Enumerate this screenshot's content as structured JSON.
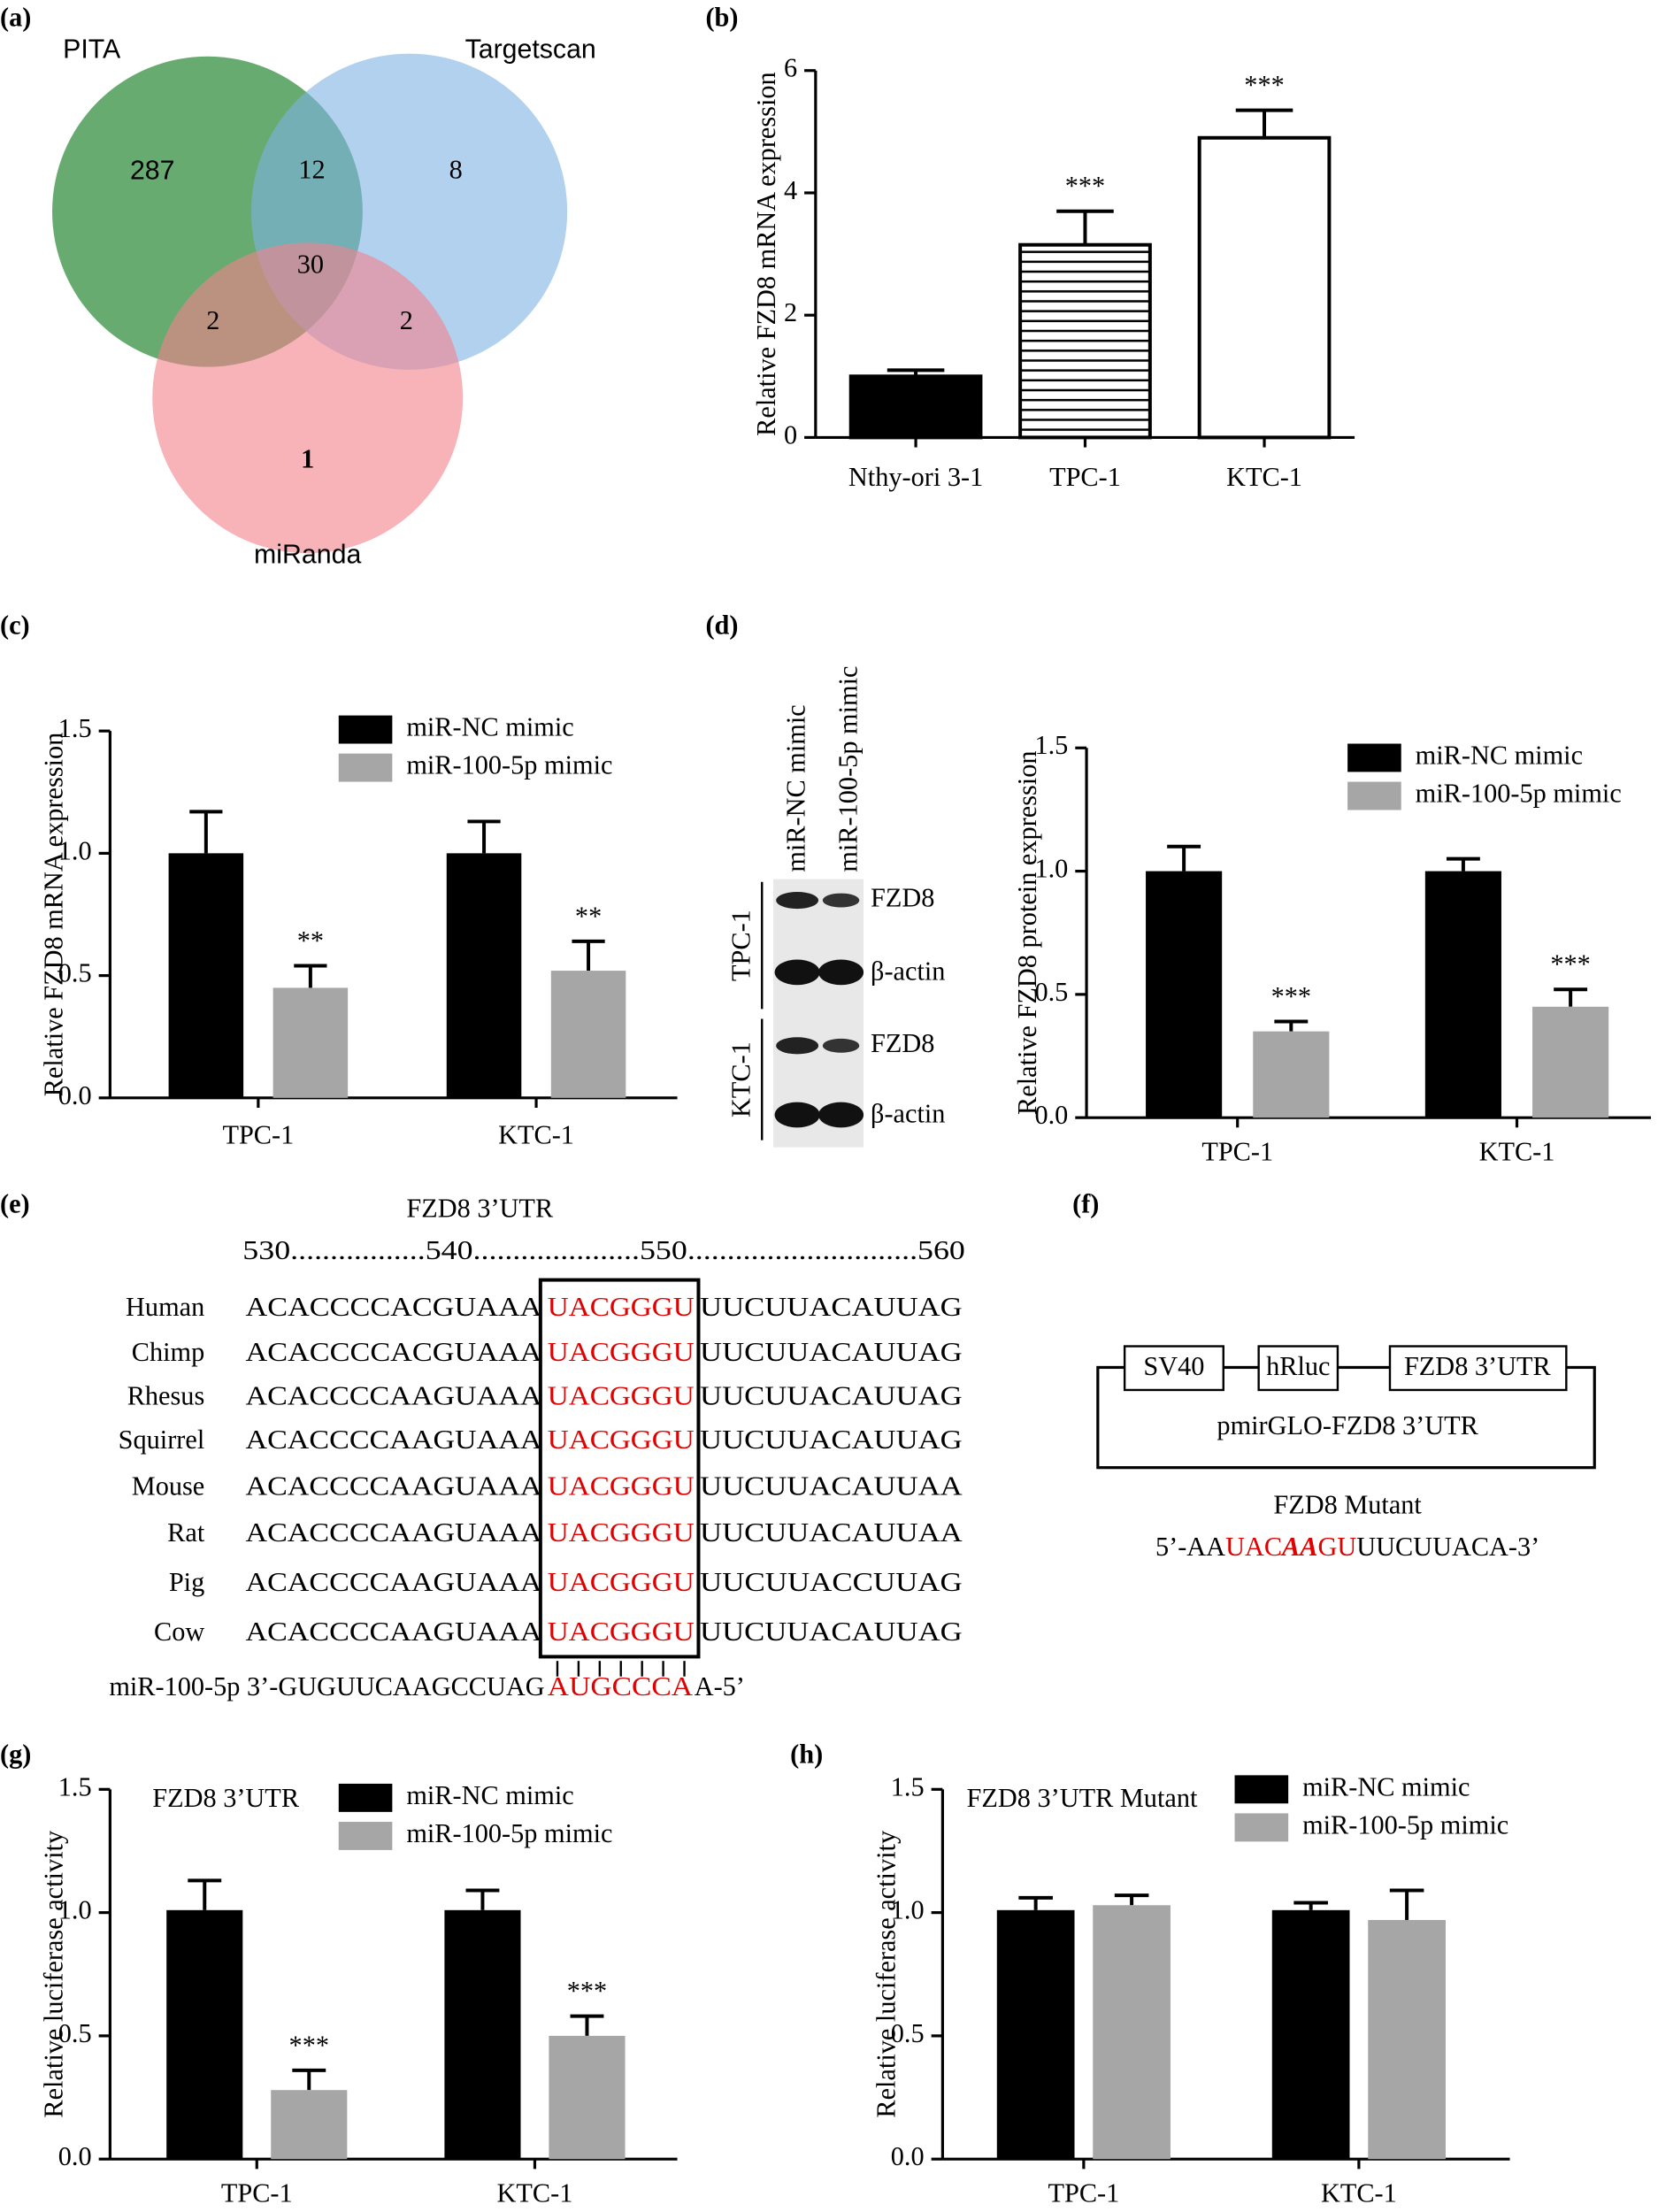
{
  "panel_labels": [
    "(a)",
    "(b)",
    "(c)",
    "(d)",
    "(e)",
    "(f)",
    "(g)",
    "(h)"
  ],
  "venn": {
    "sets": [
      {
        "name": "PITA",
        "color": "#2e8b3a"
      },
      {
        "name": "Targetscan",
        "color": "#7fb2e5"
      },
      {
        "name": "miRanda",
        "color": "#f3808b"
      }
    ],
    "counts": [
      287,
      12,
      8,
      30,
      2,
      2,
      1
    ]
  },
  "chart_data": [
    {
      "type": "bar",
      "ylabel": "Relative FZD8 mRNA expression",
      "categories": [
        "Nthy-ori 3-1",
        "TPC-1",
        "KTC-1"
      ],
      "values": [
        1.0,
        3.15,
        4.9
      ],
      "errors": [
        0.1,
        0.55,
        0.45
      ],
      "colors": [
        "#000000",
        "#ffffff",
        "#ffffff"
      ],
      "hatch": [
        false,
        true,
        false
      ],
      "annotations": [
        null,
        "***",
        "***"
      ],
      "ylim": [
        0,
        6
      ],
      "yticks": [
        0,
        2,
        4,
        6
      ]
    },
    {
      "type": "grouped_bar",
      "ylabel": "Relative FZD8 mRNA expression",
      "categories": [
        "TPC-1",
        "KTC-1"
      ],
      "series": [
        {
          "name": "miR-NC mimic",
          "color": "#000000",
          "values": [
            1.0,
            1.0
          ],
          "errors": [
            0.17,
            0.13
          ]
        },
        {
          "name": "miR-100-5p mimic",
          "color": "#a6a6a6",
          "values": [
            0.45,
            0.52
          ],
          "errors": [
            0.09,
            0.12
          ],
          "annotations": [
            "**",
            "**"
          ]
        }
      ],
      "ylim": [
        0,
        1.5
      ],
      "yticks": [
        {
          "value": 0,
          "label": "0.0"
        },
        0.5,
        {
          "value": 1,
          "label": "1.0"
        },
        1.5
      ]
    },
    {
      "type": "grouped_bar",
      "ylabel": "Relative FZD8 protein expression",
      "categories": [
        "TPC-1",
        "KTC-1"
      ],
      "series": [
        {
          "name": "miR-NC mimic",
          "color": "#000000",
          "values": [
            1.0,
            1.0
          ],
          "errors": [
            0.1,
            0.05
          ]
        },
        {
          "name": "miR-100-5p mimic",
          "color": "#a6a6a6",
          "values": [
            0.35,
            0.45
          ],
          "errors": [
            0.04,
            0.07
          ],
          "annotations": [
            "***",
            "***"
          ]
        }
      ],
      "ylim": [
        0,
        1.5
      ],
      "yticks": [
        {
          "value": 0,
          "label": "0.0"
        },
        0.5,
        {
          "value": 1,
          "label": "1.0"
        },
        1.5
      ]
    },
    {
      "type": "grouped_bar",
      "title": "FZD8 3’UTR",
      "ylabel": "Relative luciferase activity",
      "categories": [
        "TPC-1",
        "KTC-1"
      ],
      "series": [
        {
          "name": "miR-NC mimic",
          "color": "#000000",
          "values": [
            1.01,
            1.01
          ],
          "errors": [
            0.12,
            0.08
          ]
        },
        {
          "name": "miR-100-5p mimic",
          "color": "#a6a6a6",
          "values": [
            0.28,
            0.5
          ],
          "errors": [
            0.08,
            0.08
          ],
          "annotations": [
            "***",
            "***"
          ]
        }
      ],
      "ylim": [
        0,
        1.5
      ],
      "yticks": [
        {
          "value": 0,
          "label": "0.0"
        },
        0.5,
        {
          "value": 1,
          "label": "1.0"
        },
        1.5
      ]
    },
    {
      "type": "grouped_bar",
      "title": "FZD8 3’UTR Mutant",
      "ylabel": "Relative luciferase activity",
      "categories": [
        "TPC-1",
        "KTC-1"
      ],
      "series": [
        {
          "name": "miR-NC mimic",
          "color": "#000000",
          "values": [
            1.01,
            1.01
          ],
          "errors": [
            0.05,
            0.03
          ]
        },
        {
          "name": "miR-100-5p mimic",
          "color": "#a6a6a6",
          "values": [
            1.03,
            0.97
          ],
          "errors": [
            0.04,
            0.12
          ]
        }
      ],
      "ylim": [
        0,
        1.5
      ],
      "yticks": [
        {
          "value": 0,
          "label": "0.0"
        },
        0.5,
        {
          "value": 1,
          "label": "1.0"
        },
        1.5
      ]
    }
  ],
  "blot": {
    "columns": [
      "miR-NC mimic",
      "miR-100-5p mimic"
    ],
    "rows": [
      {
        "cell": "TPC-1",
        "bands": [
          "FZD8",
          "β-actin"
        ]
      },
      {
        "cell": "KTC-1",
        "bands": [
          "FZD8",
          "β-actin"
        ]
      }
    ]
  },
  "alignment": {
    "title": "FZD8 3’UTR",
    "ruler": "530.................540.....................550.............................560",
    "rows": [
      {
        "species": "Human",
        "left": "ACACCCCACGUAAA",
        "site": "UACGGGU",
        "right": "UUCUUACAUUAG"
      },
      {
        "species": "Chimp",
        "left": "ACACCCCACGUAAA",
        "site": "UACGGGU",
        "right": "UUCUUACAUUAG"
      },
      {
        "species": "Rhesus",
        "left": "ACACCCCAAGUAAA",
        "site": "UACGGGU",
        "right": "UUCUUACAUUAG"
      },
      {
        "species": "Squirrel",
        "left": "ACACCCCAAGUAAA",
        "site": "UACGGGU",
        "right": "UUCUUACAUUAG"
      },
      {
        "species": "Mouse",
        "left": "ACACCCCAAGUAAA",
        "site": "UACGGGU",
        "right": "UUCUUACAUUAA"
      },
      {
        "species": "Rat",
        "left": "ACACCCCAAGUAAA",
        "site": "UACGGGU",
        "right": "UUCUUACAUUAA"
      },
      {
        "species": "Pig",
        "left": "ACACCCCAAGUAAA",
        "site": "UACGGGU",
        "right": "UUCUUACCUUAG"
      },
      {
        "species": "Cow",
        "left": "ACACCCCAAGUAAA",
        "site": "UACGGGU",
        "right": "UUCUUACAUUAG"
      }
    ],
    "mirna": {
      "left": "miR-100-5p 3’-GUGUUCAAGCCUAG",
      "site": "AUGCCCA",
      "right": "A-5’"
    }
  },
  "construct": {
    "elements": [
      "SV40",
      "hRluc",
      "FZD8 3’UTR"
    ],
    "vector": "pmirGLO-FZD8 3’UTR",
    "mutant_title": "FZD8 Mutant",
    "mutant": [
      "5’-AA",
      "UAC",
      "AA",
      "GU",
      "UUCUUACA-3’"
    ]
  }
}
